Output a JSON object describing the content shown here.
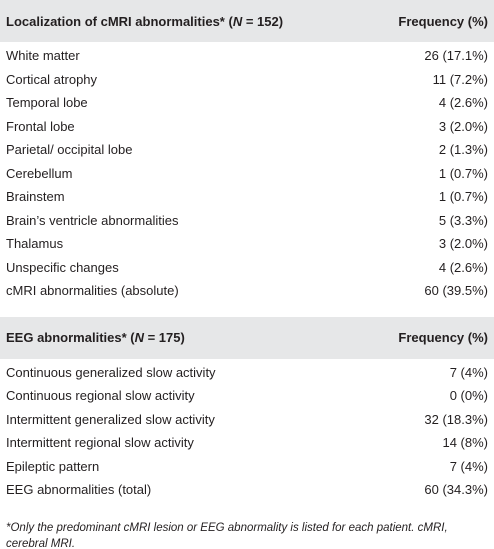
{
  "sections": [
    {
      "header": {
        "label_parts": [
          "Localization of cMRI abnormalities* (",
          "N",
          " = 152)"
        ],
        "frequency": "Frequency (%)"
      },
      "rows": [
        [
          "White matter",
          "26 (17.1%)"
        ],
        [
          "Cortical atrophy",
          "11 (7.2%)"
        ],
        [
          "Temporal lobe",
          "4 (2.6%)"
        ],
        [
          "Frontal lobe",
          "3 (2.0%)"
        ],
        [
          "Parietal/ occipital lobe",
          "2 (1.3%)"
        ],
        [
          "Cerebellum",
          "1 (0.7%)"
        ],
        [
          "Brainstem",
          "1 (0.7%)"
        ],
        [
          "Brain’s ventricle abnormalities",
          "5 (3.3%)"
        ],
        [
          "Thalamus",
          "3 (2.0%)"
        ],
        [
          "Unspecific changes",
          "4 (2.6%)"
        ],
        [
          "cMRI abnormalities (absolute)",
          "60 (39.5%)"
        ]
      ]
    },
    {
      "header": {
        "label_parts": [
          "EEG abnormalities* (",
          "N",
          " = 175)"
        ],
        "frequency": "Frequency (%)"
      },
      "rows": [
        [
          "Continuous generalized slow activity",
          "7 (4%)"
        ],
        [
          "Continuous regional slow activity",
          "0 (0%)"
        ],
        [
          "Intermittent generalized slow activity",
          "32 (18.3%)"
        ],
        [
          "Intermittent regional slow activity",
          "14 (8%)"
        ],
        [
          "Epileptic pattern",
          "7 (4%)"
        ],
        [
          "EEG abnormalities (total)",
          "60 (34.3%)"
        ]
      ]
    }
  ],
  "footnote": "*Only the predominant cMRI lesion or EEG abnormality is listed for each patient. cMRI, cerebral MRI."
}
